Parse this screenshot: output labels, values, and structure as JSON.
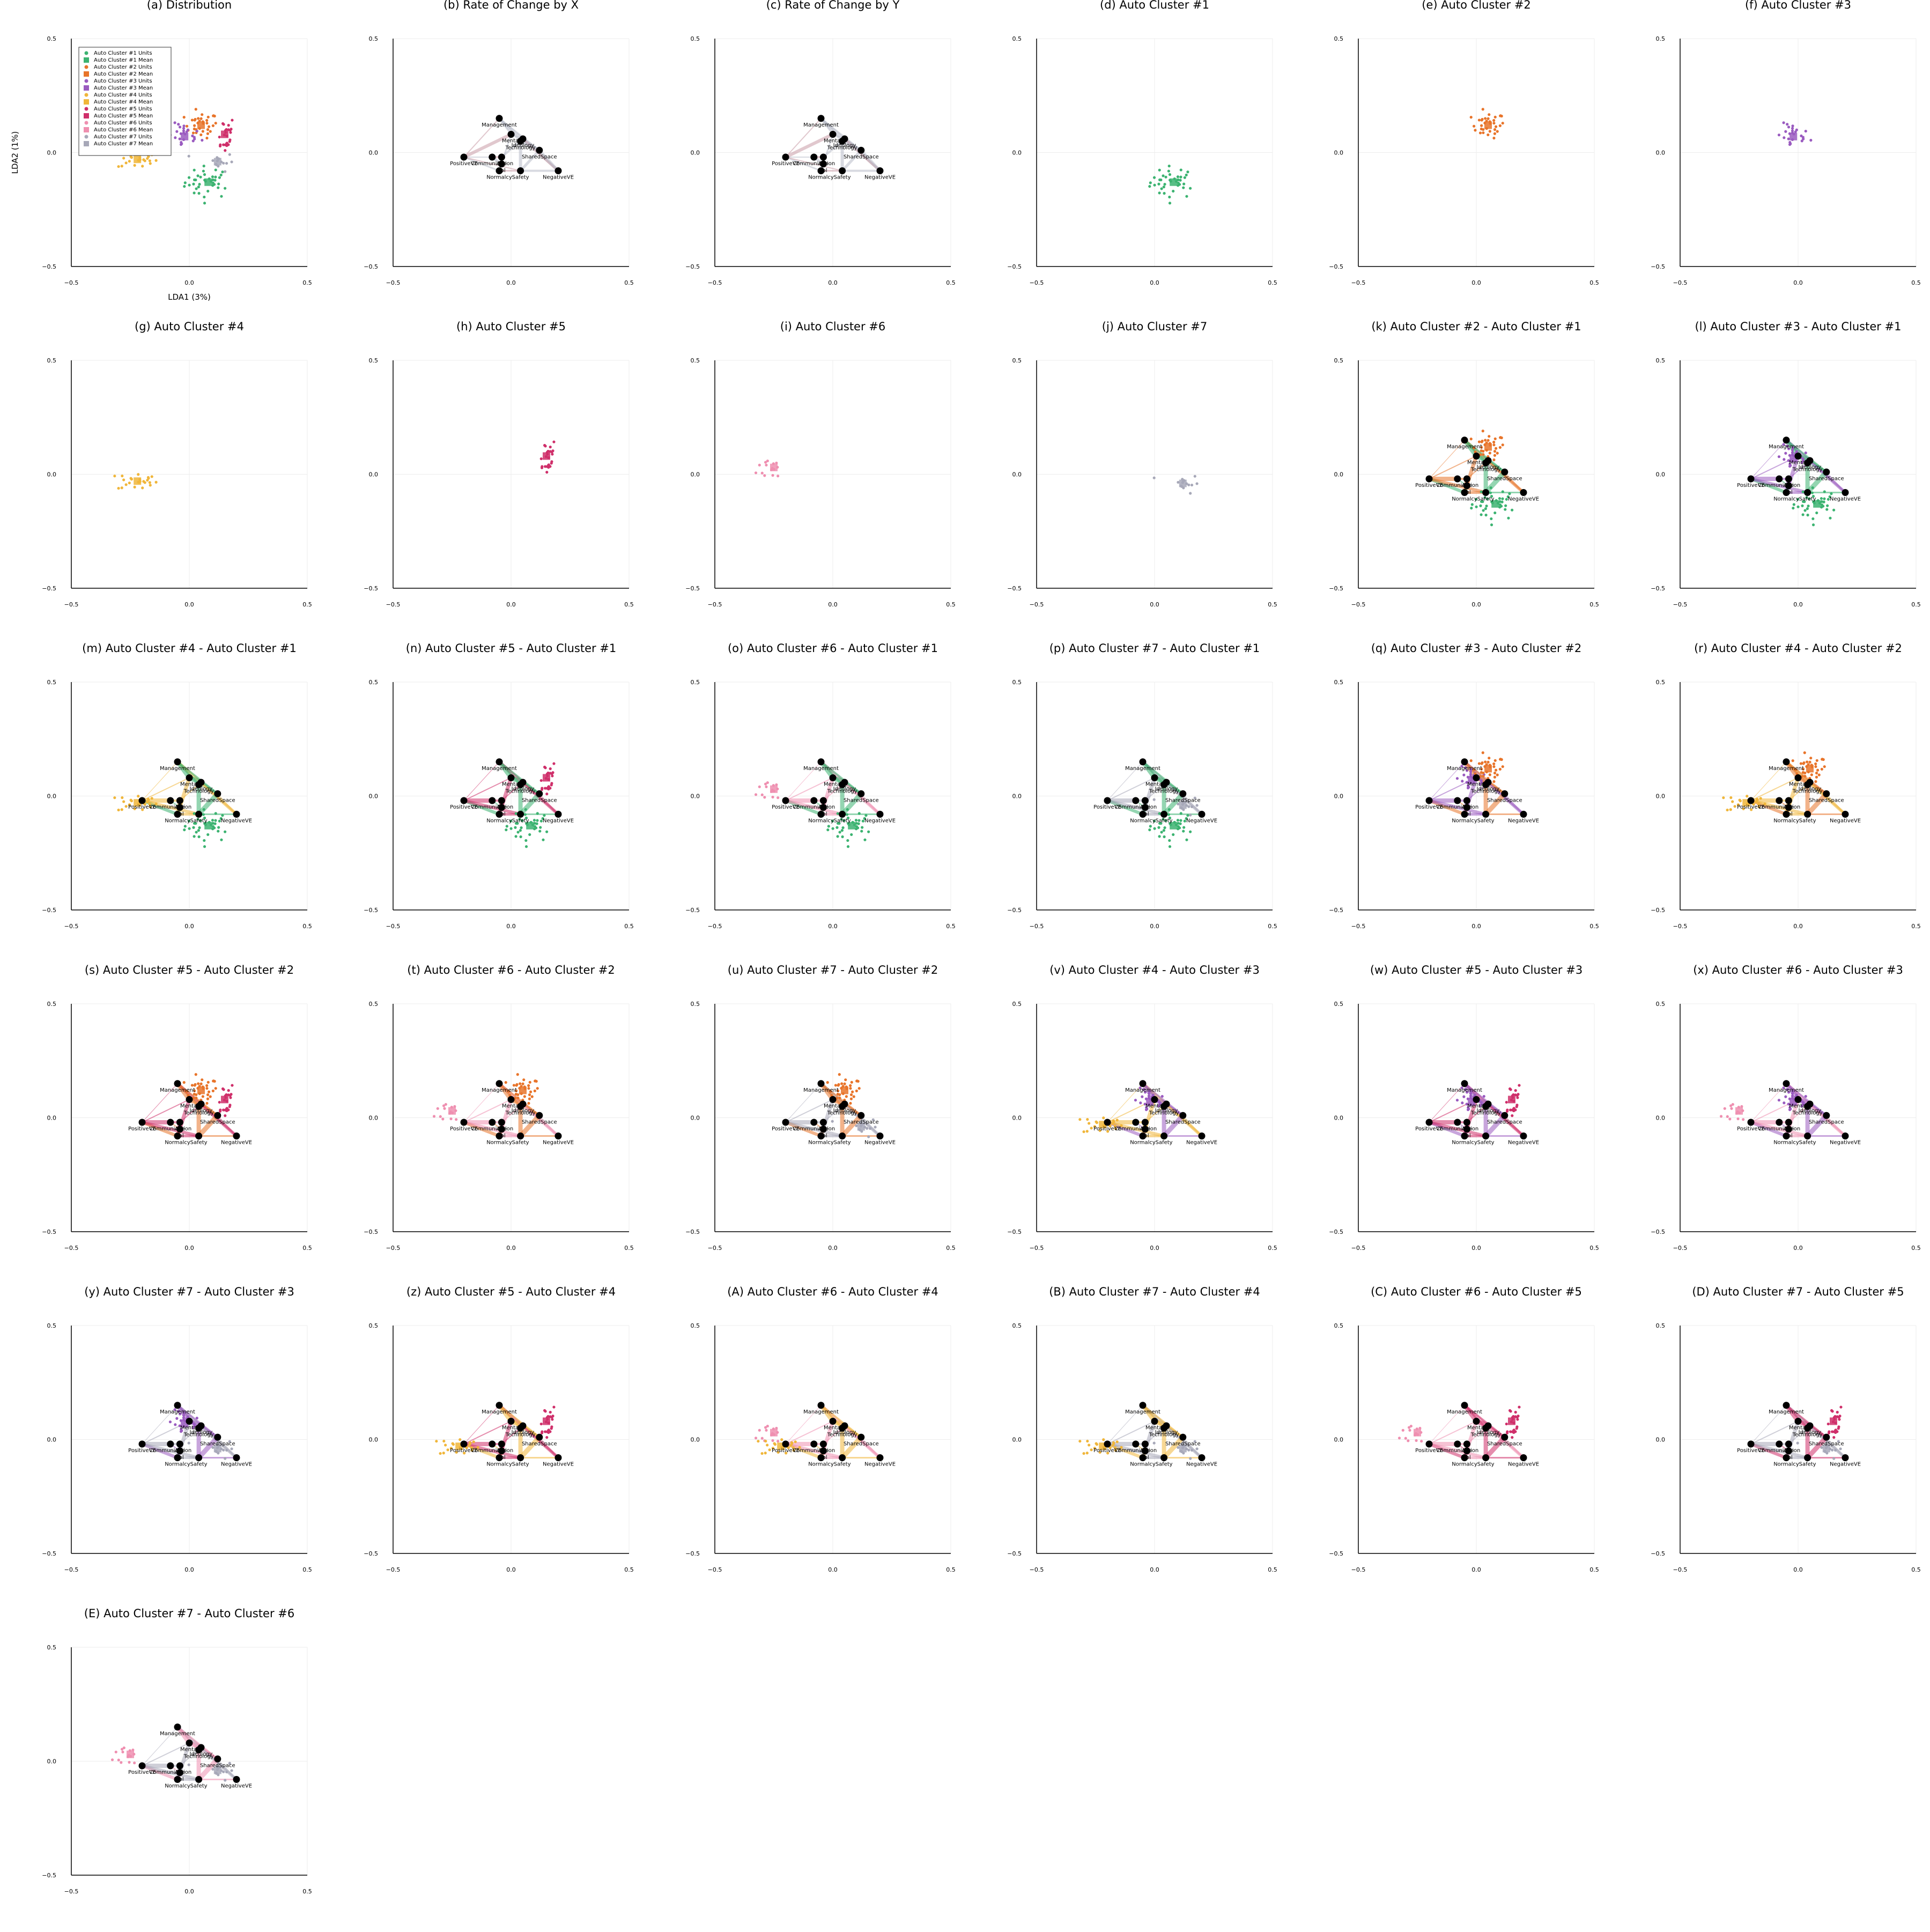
{
  "colors": {
    "cluster1": "#3cb371",
    "cluster2": "#e8742a",
    "cluster3": "#9a5bc0",
    "cluster4": "#f0b63a",
    "cluster5": "#cf2f6a",
    "cluster6": "#ef8fb0",
    "cluster7": "#a7a8b8",
    "node": "#000000",
    "axis": "#000000",
    "grid": "#ececec"
  },
  "chart_data": {
    "type": "scatter",
    "xlim": [
      -0.5,
      0.5
    ],
    "ylim": [
      -0.5,
      0.5
    ],
    "ticks": [
      -0.5,
      0.0,
      0.5
    ],
    "tick_labels": [
      "−0.5",
      "0.0",
      "0.5"
    ],
    "grid": true,
    "xlabel": "LDA1 (3%)",
    "ylabel": "LDA2 (1%)",
    "legend_position": "top-left",
    "legend": [
      "Auto Cluster #1 Units",
      "Auto Cluster #1 Mean",
      "Auto Cluster #2 Units",
      "Auto Cluster #2 Mean",
      "Auto Cluster #3 Units",
      "Auto Cluster #3 Mean",
      "Auto Cluster #4 Units",
      "Auto Cluster #4 Mean",
      "Auto Cluster #5 Units",
      "Auto Cluster #5 Mean",
      "Auto Cluster #6 Units",
      "Auto Cluster #6 Mean",
      "Auto Cluster #7 Units",
      "Auto Cluster #7 Mean"
    ],
    "clusters": [
      {
        "id": 1,
        "mean": [
          0.08,
          -0.13
        ],
        "spread": [
          0.07,
          0.05
        ],
        "n": 40
      },
      {
        "id": 2,
        "mean": [
          0.05,
          0.12
        ],
        "spread": [
          0.05,
          0.04
        ],
        "n": 35
      },
      {
        "id": 3,
        "mean": [
          -0.02,
          0.07
        ],
        "spread": [
          0.05,
          0.04
        ],
        "n": 25
      },
      {
        "id": 4,
        "mean": [
          -0.22,
          -0.03
        ],
        "spread": [
          0.06,
          0.03
        ],
        "n": 25
      },
      {
        "id": 5,
        "mean": [
          0.15,
          0.08
        ],
        "spread": [
          0.03,
          0.06
        ],
        "n": 25
      },
      {
        "id": 6,
        "mean": [
          -0.25,
          0.03
        ],
        "spread": [
          0.05,
          0.04
        ],
        "n": 15
      },
      {
        "id": 7,
        "mean": [
          0.12,
          -0.04
        ],
        "spread": [
          0.05,
          0.03
        ],
        "n": 15
      }
    ],
    "nodes": [
      {
        "label": "Management",
        "x": -0.05,
        "y": 0.15
      },
      {
        "label": "Mental",
        "x": 0.0,
        "y": 0.08
      },
      {
        "label": "Ideology",
        "x": 0.05,
        "y": 0.06
      },
      {
        "label": "Technology",
        "x": 0.04,
        "y": 0.05
      },
      {
        "label": "SharedSpace",
        "x": 0.12,
        "y": 0.01
      },
      {
        "label": "PositiveVE",
        "x": -0.2,
        "y": -0.02
      },
      {
        "label": "Communication",
        "x": -0.08,
        "y": -0.02
      },
      {
        "label": "Age",
        "x": -0.04,
        "y": -0.02
      },
      {
        "label": "Pol",
        "x": -0.04,
        "y": -0.05
      },
      {
        "label": "Normalcy",
        "x": -0.05,
        "y": -0.08
      },
      {
        "label": "Safety",
        "x": 0.04,
        "y": -0.08
      },
      {
        "label": "NegativeVE",
        "x": 0.2,
        "y": -0.08
      }
    ],
    "panels": [
      {
        "title": "(a) Distribution",
        "clusters": [
          1,
          2,
          3,
          4,
          5,
          6,
          7
        ],
        "arrows": false,
        "legend": true,
        "labels": true
      },
      {
        "title": "(b) Rate of Change by X",
        "clusters": [],
        "arrows": true,
        "mode": "x"
      },
      {
        "title": "(c) Rate of Change by Y",
        "clusters": [],
        "arrows": true,
        "mode": "y"
      },
      {
        "title": "(d) Auto Cluster #1",
        "clusters": [
          1
        ],
        "arrows": false
      },
      {
        "title": "(e) Auto Cluster #2",
        "clusters": [
          2
        ],
        "arrows": false
      },
      {
        "title": "(f) Auto Cluster #3",
        "clusters": [
          3
        ],
        "arrows": false
      },
      {
        "title": "(g) Auto Cluster #4",
        "clusters": [
          4
        ],
        "arrows": false
      },
      {
        "title": "(h) Auto Cluster #5",
        "clusters": [
          5
        ],
        "arrows": false
      },
      {
        "title": "(i) Auto Cluster #6",
        "clusters": [
          6
        ],
        "arrows": false
      },
      {
        "title": "(j) Auto Cluster #7",
        "clusters": [
          7
        ],
        "arrows": false
      },
      {
        "title": "(k) Auto Cluster #2 - Auto Cluster #1",
        "clusters": [
          2,
          1
        ],
        "arrows": true
      },
      {
        "title": "(l) Auto Cluster #3 - Auto Cluster #1",
        "clusters": [
          3,
          1
        ],
        "arrows": true
      },
      {
        "title": "(m) Auto Cluster #4 - Auto Cluster #1",
        "clusters": [
          4,
          1
        ],
        "arrows": true
      },
      {
        "title": "(n) Auto Cluster #5 - Auto Cluster #1",
        "clusters": [
          5,
          1
        ],
        "arrows": true
      },
      {
        "title": "(o) Auto Cluster #6 - Auto Cluster #1",
        "clusters": [
          6,
          1
        ],
        "arrows": true
      },
      {
        "title": "(p) Auto Cluster #7 - Auto Cluster #1",
        "clusters": [
          7,
          1
        ],
        "arrows": true
      },
      {
        "title": "(q) Auto Cluster #3 - Auto Cluster #2",
        "clusters": [
          3,
          2
        ],
        "arrows": true
      },
      {
        "title": "(r) Auto Cluster #4 - Auto Cluster #2",
        "clusters": [
          4,
          2
        ],
        "arrows": true
      },
      {
        "title": "(s) Auto Cluster #5 - Auto Cluster #2",
        "clusters": [
          5,
          2
        ],
        "arrows": true
      },
      {
        "title": "(t) Auto Cluster #6 - Auto Cluster #2",
        "clusters": [
          6,
          2
        ],
        "arrows": true
      },
      {
        "title": "(u) Auto Cluster #7 - Auto Cluster #2",
        "clusters": [
          7,
          2
        ],
        "arrows": true
      },
      {
        "title": "(v) Auto Cluster #4 - Auto Cluster #3",
        "clusters": [
          4,
          3
        ],
        "arrows": true
      },
      {
        "title": "(w) Auto Cluster #5 - Auto Cluster #3",
        "clusters": [
          5,
          3
        ],
        "arrows": true
      },
      {
        "title": "(x) Auto Cluster #6 - Auto Cluster #3",
        "clusters": [
          6,
          3
        ],
        "arrows": true
      },
      {
        "title": "(y) Auto Cluster #7 - Auto Cluster #3",
        "clusters": [
          7,
          3
        ],
        "arrows": true
      },
      {
        "title": "(z) Auto Cluster #5 - Auto Cluster #4",
        "clusters": [
          5,
          4
        ],
        "arrows": true
      },
      {
        "title": "(A) Auto Cluster #6 - Auto Cluster #4",
        "clusters": [
          6,
          4
        ],
        "arrows": true
      },
      {
        "title": "(B) Auto Cluster #7 - Auto Cluster #4",
        "clusters": [
          7,
          4
        ],
        "arrows": true
      },
      {
        "title": "(C) Auto Cluster #6 - Auto Cluster #5",
        "clusters": [
          6,
          5
        ],
        "arrows": true
      },
      {
        "title": "(D) Auto Cluster #7 - Auto Cluster #5",
        "clusters": [
          7,
          5
        ],
        "arrows": true
      },
      {
        "title": "(E) Auto Cluster #7 - Auto Cluster #6",
        "clusters": [
          7,
          6
        ],
        "arrows": true
      }
    ]
  }
}
